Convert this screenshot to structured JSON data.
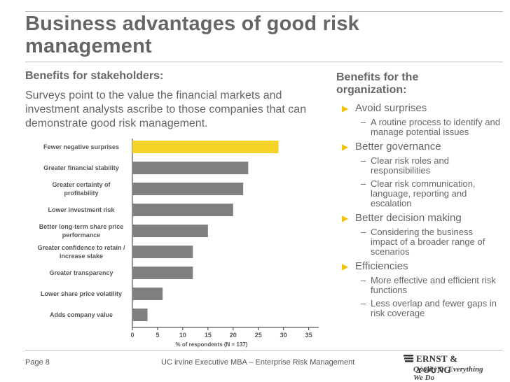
{
  "title": "Business advantages of good risk management",
  "stakeholders": {
    "heading": "Benefits for stakeholders:",
    "description": "Surveys point to the value the financial markets and investment analysts ascribe to those companies that can demonstrate good risk management."
  },
  "organization": {
    "heading": "Benefits for the organization:",
    "items": [
      {
        "label": "Avoid surprises",
        "subs": [
          "A routine process to identify and manage potential issues"
        ]
      },
      {
        "label": "Better governance",
        "subs": [
          "Clear risk roles and responsibilities",
          "Clear risk communication, language, reporting and escalation"
        ]
      },
      {
        "label": "Better decision making",
        "subs": [
          "Considering the business impact of a broader range of scenarios"
        ]
      },
      {
        "label": "Efficiencies",
        "subs": [
          "More effective and efficient risk functions",
          "Less overlap and fewer gaps in risk coverage"
        ]
      }
    ]
  },
  "chart_data": {
    "type": "bar",
    "orientation": "horizontal",
    "categories": [
      "Fewer negative surprises",
      "Greater financial stability",
      "Greater certainty of profitability",
      "Lower investment risk",
      "Better long-term share price performance",
      "Greater confidence to retain / increase stake",
      "Greater transparency",
      "Lower share price volatility",
      "Adds company value"
    ],
    "values": [
      29,
      23,
      22,
      20,
      15,
      12,
      12,
      6,
      3
    ],
    "highlight_index": 0,
    "xlabel": "% of respondents (N = 137)",
    "xlim": [
      0,
      37
    ],
    "xticks": [
      0,
      5,
      10,
      15,
      20,
      25,
      30,
      35
    ],
    "colors": {
      "highlight": "#f5d327",
      "bar": "#7f7f7f"
    }
  },
  "footer": {
    "page": "Page 8",
    "center": "UC irvine Executive MBA – Enterprise Risk Management",
    "logo_name": "ERNST & YOUNG",
    "logo_tagline": "Quality In Everything We Do"
  }
}
